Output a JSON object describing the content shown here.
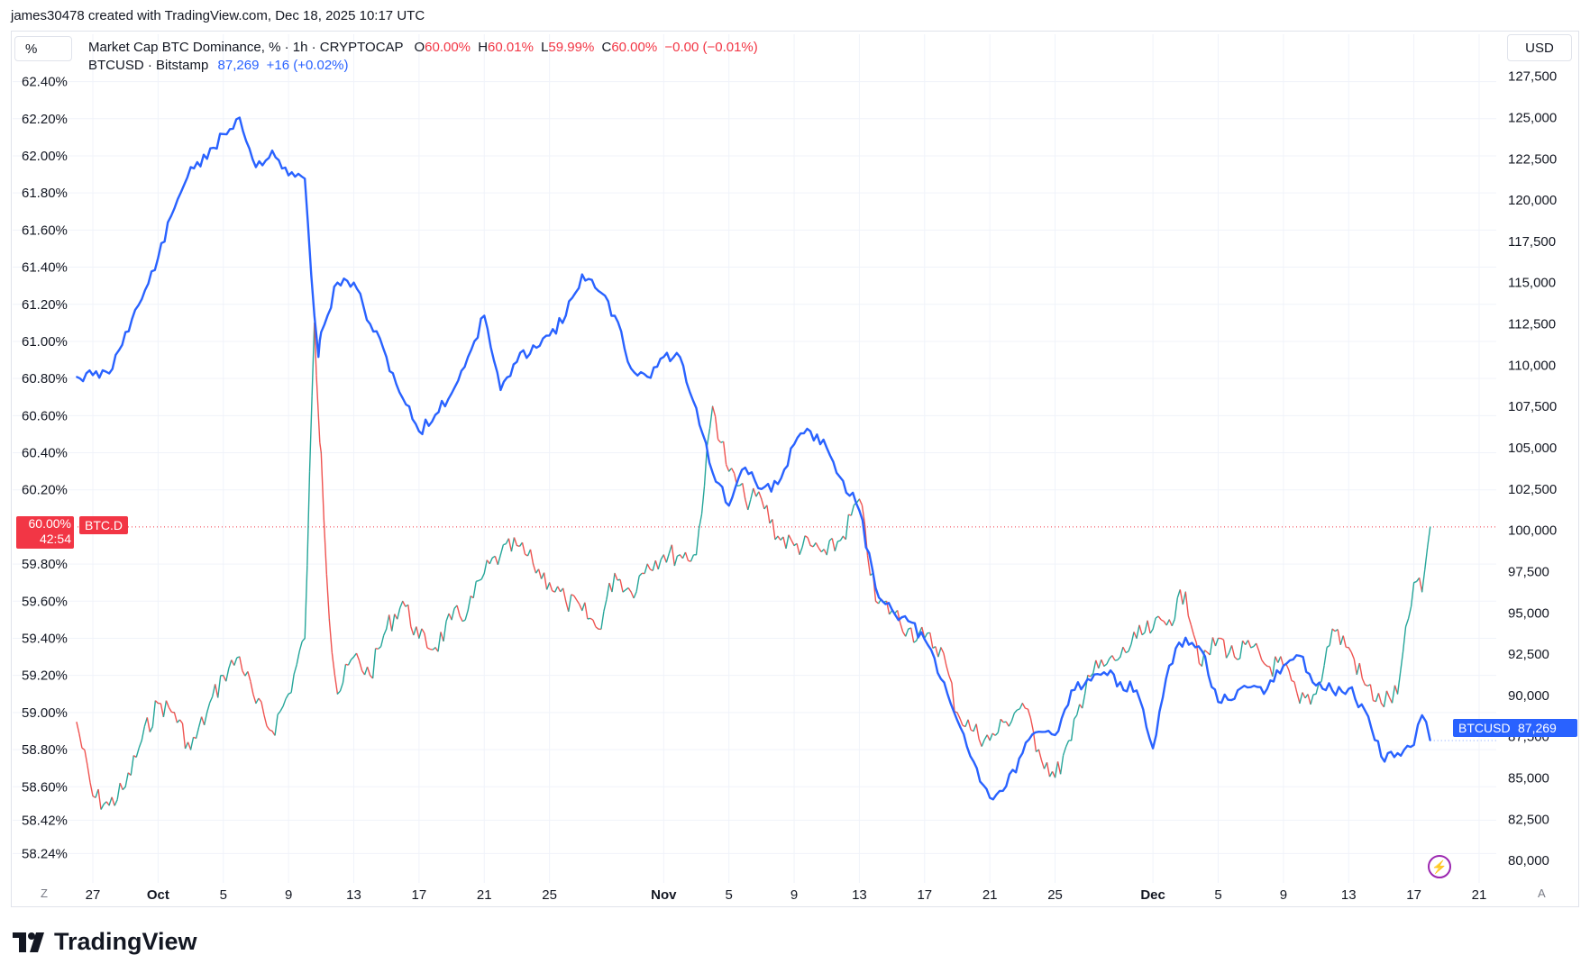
{
  "header": {
    "created_by": "james30478 created with TradingView.com, Dec 18, 2025 10:17 UTC"
  },
  "legend": {
    "series1_name": "Market Cap BTC Dominance, % · 1h · CRYPTOCAP",
    "series1_ohlc": [
      "O",
      "60.00%",
      "H",
      "60.01%",
      "L",
      "59.99%",
      "C",
      "60.00%",
      "−0.00 (−0.01%)"
    ],
    "series2_name": "BTCUSD · Bitstamp",
    "series2_price": "87,269",
    "series2_change": "+16 (+0.02%)"
  },
  "buttons": {
    "percent": "%",
    "usd": "USD"
  },
  "tags": {
    "btcd_value": "60.00%",
    "btcd_timer": "42:54",
    "btcd_label": "BTC.D",
    "btcusd_label": "BTCUSD",
    "btcusd_value": "87,269"
  },
  "corner": {
    "left": "Z",
    "right": "A"
  },
  "brand": {
    "name": "TradingView"
  },
  "colors": {
    "dominance_up": "#26a69a",
    "dominance_down": "#ef5350",
    "btcusd_line": "#2962ff",
    "tag_red": "#f23645",
    "tag_blue": "#2962ff",
    "grid": "#f0f3fa"
  },
  "chart_data": {
    "type": "line",
    "title": "Market Cap BTC Dominance, % · 1h · CRYPTOCAP",
    "x_ticks": [
      "27",
      "Oct",
      "5",
      "9",
      "13",
      "17",
      "21",
      "25",
      "Nov",
      "5",
      "9",
      "13",
      "17",
      "21",
      "25",
      "Dec",
      "5",
      "9",
      "13",
      "17",
      "21"
    ],
    "x_tick_dates": [
      "2025-09-27",
      "2025-10-01",
      "2025-10-05",
      "2025-10-09",
      "2025-10-13",
      "2025-10-17",
      "2025-10-21",
      "2025-10-25",
      "2025-11-01",
      "2025-11-05",
      "2025-11-09",
      "2025-11-13",
      "2025-11-17",
      "2025-11-21",
      "2025-11-25",
      "2025-12-01",
      "2025-12-05",
      "2025-12-09",
      "2025-12-13",
      "2025-12-17",
      "2025-12-21"
    ],
    "left_axis": {
      "unit": "%",
      "ticks": [
        "62.40%",
        "62.20%",
        "62.00%",
        "61.80%",
        "61.60%",
        "61.40%",
        "61.20%",
        "61.00%",
        "60.80%",
        "60.60%",
        "60.40%",
        "60.20%",
        "59.80%",
        "59.60%",
        "59.40%",
        "59.20%",
        "59.00%",
        "58.80%",
        "58.60%",
        "58.42%",
        "58.24%"
      ],
      "ylim": [
        58.14,
        62.5
      ]
    },
    "right_axis": {
      "unit": "USD",
      "ticks": [
        "127,500",
        "125,000",
        "122,500",
        "120,000",
        "117,500",
        "115,000",
        "112,500",
        "110,000",
        "107,500",
        "105,000",
        "102,500",
        "100,000",
        "97,500",
        "95,000",
        "92,500",
        "90,000",
        "87,500",
        "85,000",
        "82,500",
        "80,000"
      ],
      "ylim": [
        79300,
        128300
      ]
    },
    "series": [
      {
        "name": "Market Cap BTC Dominance, % · 1h · CRYPTOCAP",
        "axis": "left",
        "style": "hollow-candle-line",
        "x": [
          "2025-09-26",
          "2025-09-27",
          "2025-09-28",
          "2025-09-29",
          "2025-09-30",
          "2025-10-01",
          "2025-10-02",
          "2025-10-03",
          "2025-10-04",
          "2025-10-05",
          "2025-10-06",
          "2025-10-07",
          "2025-10-08",
          "2025-10-09",
          "2025-10-10",
          "2025-10-10T14:00",
          "2025-10-10T20:00",
          "2025-10-11",
          "2025-10-11T12:00",
          "2025-10-12",
          "2025-10-13",
          "2025-10-14",
          "2025-10-15",
          "2025-10-16",
          "2025-10-17",
          "2025-10-18",
          "2025-10-19",
          "2025-10-20",
          "2025-10-21",
          "2025-10-22",
          "2025-10-23",
          "2025-10-24",
          "2025-10-25",
          "2025-10-26",
          "2025-10-27",
          "2025-10-28",
          "2025-10-29",
          "2025-10-30",
          "2025-10-31",
          "2025-11-01",
          "2025-11-02",
          "2025-11-03",
          "2025-11-04",
          "2025-11-05",
          "2025-11-06",
          "2025-11-07",
          "2025-11-08",
          "2025-11-09",
          "2025-11-10",
          "2025-11-11",
          "2025-11-12",
          "2025-11-13",
          "2025-11-14",
          "2025-11-15",
          "2025-11-16",
          "2025-11-17",
          "2025-11-18",
          "2025-11-19",
          "2025-11-20",
          "2025-11-21",
          "2025-11-22",
          "2025-11-23",
          "2025-11-24",
          "2025-11-25",
          "2025-11-26",
          "2025-11-27",
          "2025-11-28",
          "2025-11-29",
          "2025-11-30",
          "2025-12-01",
          "2025-12-02",
          "2025-12-03",
          "2025-12-04",
          "2025-12-05",
          "2025-12-06",
          "2025-12-07",
          "2025-12-08",
          "2025-12-09",
          "2025-12-10",
          "2025-12-11",
          "2025-12-12",
          "2025-12-13",
          "2025-12-14",
          "2025-12-15",
          "2025-12-16",
          "2025-12-17",
          "2025-12-17T12:00",
          "2025-12-18"
        ],
        "values": [
          58.95,
          58.55,
          58.5,
          58.6,
          58.85,
          59.05,
          59.0,
          58.8,
          59.0,
          59.2,
          59.3,
          59.05,
          58.9,
          59.1,
          59.4,
          61.1,
          60.6,
          60.4,
          59.5,
          59.1,
          59.3,
          59.2,
          59.45,
          59.6,
          59.4,
          59.35,
          59.5,
          59.55,
          59.75,
          59.85,
          59.9,
          59.8,
          59.7,
          59.6,
          59.55,
          59.45,
          59.75,
          59.65,
          59.8,
          59.85,
          59.85,
          59.85,
          60.65,
          60.3,
          60.15,
          60.15,
          59.95,
          59.9,
          59.9,
          59.85,
          59.95,
          60.15,
          59.6,
          59.55,
          59.45,
          59.4,
          59.35,
          59.0,
          58.9,
          58.85,
          58.95,
          59.05,
          58.8,
          58.65,
          58.85,
          59.2,
          59.25,
          59.3,
          59.4,
          59.45,
          59.5,
          59.65,
          59.25,
          59.4,
          59.3,
          59.35,
          59.25,
          59.25,
          59.05,
          59.1,
          59.45,
          59.35,
          59.15,
          59.05,
          59.1,
          59.7,
          59.65,
          60.0
        ]
      },
      {
        "name": "BTCUSD · Bitstamp",
        "axis": "right",
        "x": [
          "2025-09-26",
          "2025-09-27",
          "2025-09-28",
          "2025-09-29",
          "2025-09-30",
          "2025-10-01",
          "2025-10-02",
          "2025-10-03",
          "2025-10-04",
          "2025-10-05",
          "2025-10-06",
          "2025-10-07",
          "2025-10-08",
          "2025-10-09",
          "2025-10-10",
          "2025-10-10T14:00",
          "2025-10-10T20:00",
          "2025-10-11",
          "2025-10-12",
          "2025-10-13",
          "2025-10-14",
          "2025-10-15",
          "2025-10-16",
          "2025-10-17",
          "2025-10-18",
          "2025-10-19",
          "2025-10-20",
          "2025-10-21",
          "2025-10-22",
          "2025-10-23",
          "2025-10-24",
          "2025-10-25",
          "2025-10-26",
          "2025-10-27",
          "2025-10-28",
          "2025-10-29",
          "2025-10-30",
          "2025-10-31",
          "2025-11-01",
          "2025-11-02",
          "2025-11-03",
          "2025-11-04",
          "2025-11-05",
          "2025-11-06",
          "2025-11-07",
          "2025-11-08",
          "2025-11-09",
          "2025-11-10",
          "2025-11-11",
          "2025-11-12",
          "2025-11-13",
          "2025-11-14",
          "2025-11-15",
          "2025-11-16",
          "2025-11-17",
          "2025-11-18",
          "2025-11-19",
          "2025-11-20",
          "2025-11-21",
          "2025-11-22",
          "2025-11-23",
          "2025-11-24",
          "2025-11-25",
          "2025-11-26",
          "2025-11-27",
          "2025-11-28",
          "2025-11-29",
          "2025-11-30",
          "2025-12-01",
          "2025-12-02",
          "2025-12-03",
          "2025-12-04",
          "2025-12-05",
          "2025-12-06",
          "2025-12-07",
          "2025-12-08",
          "2025-12-09",
          "2025-12-10",
          "2025-12-11",
          "2025-12-12",
          "2025-12-13",
          "2025-12-14",
          "2025-12-15",
          "2025-12-16",
          "2025-12-17",
          "2025-12-17T12:00",
          "2025-12-18"
        ],
        "values": [
          109300,
          109400,
          109500,
          112000,
          114000,
          116500,
          119500,
          122000,
          122500,
          124000,
          125000,
          122000,
          123000,
          121500,
          121300,
          113000,
          110500,
          112000,
          115000,
          115000,
          112500,
          110500,
          108000,
          106000,
          107000,
          108300,
          110500,
          113000,
          108500,
          110200,
          111200,
          111800,
          113000,
          115500,
          114500,
          113000,
          109800,
          109300,
          110500,
          110500,
          107400,
          103500,
          101500,
          103800,
          102500,
          102800,
          105200,
          106000,
          105000,
          103000,
          101200,
          96500,
          95200,
          94500,
          93400,
          91000,
          88500,
          86000,
          83800,
          84500,
          86500,
          87800,
          87600,
          90300,
          91000,
          91400,
          90800,
          90300,
          86800,
          91800,
          93500,
          92700,
          89600,
          89800,
          90500,
          90400,
          91800,
          92400,
          90600,
          90300,
          90400,
          89100,
          86300,
          86500,
          87000,
          88800,
          87269
        ]
      }
    ],
    "reference_line": {
      "value": 60.0,
      "axis": "left",
      "label": "60.00%"
    },
    "grid": true,
    "legend_position": "top-left"
  }
}
